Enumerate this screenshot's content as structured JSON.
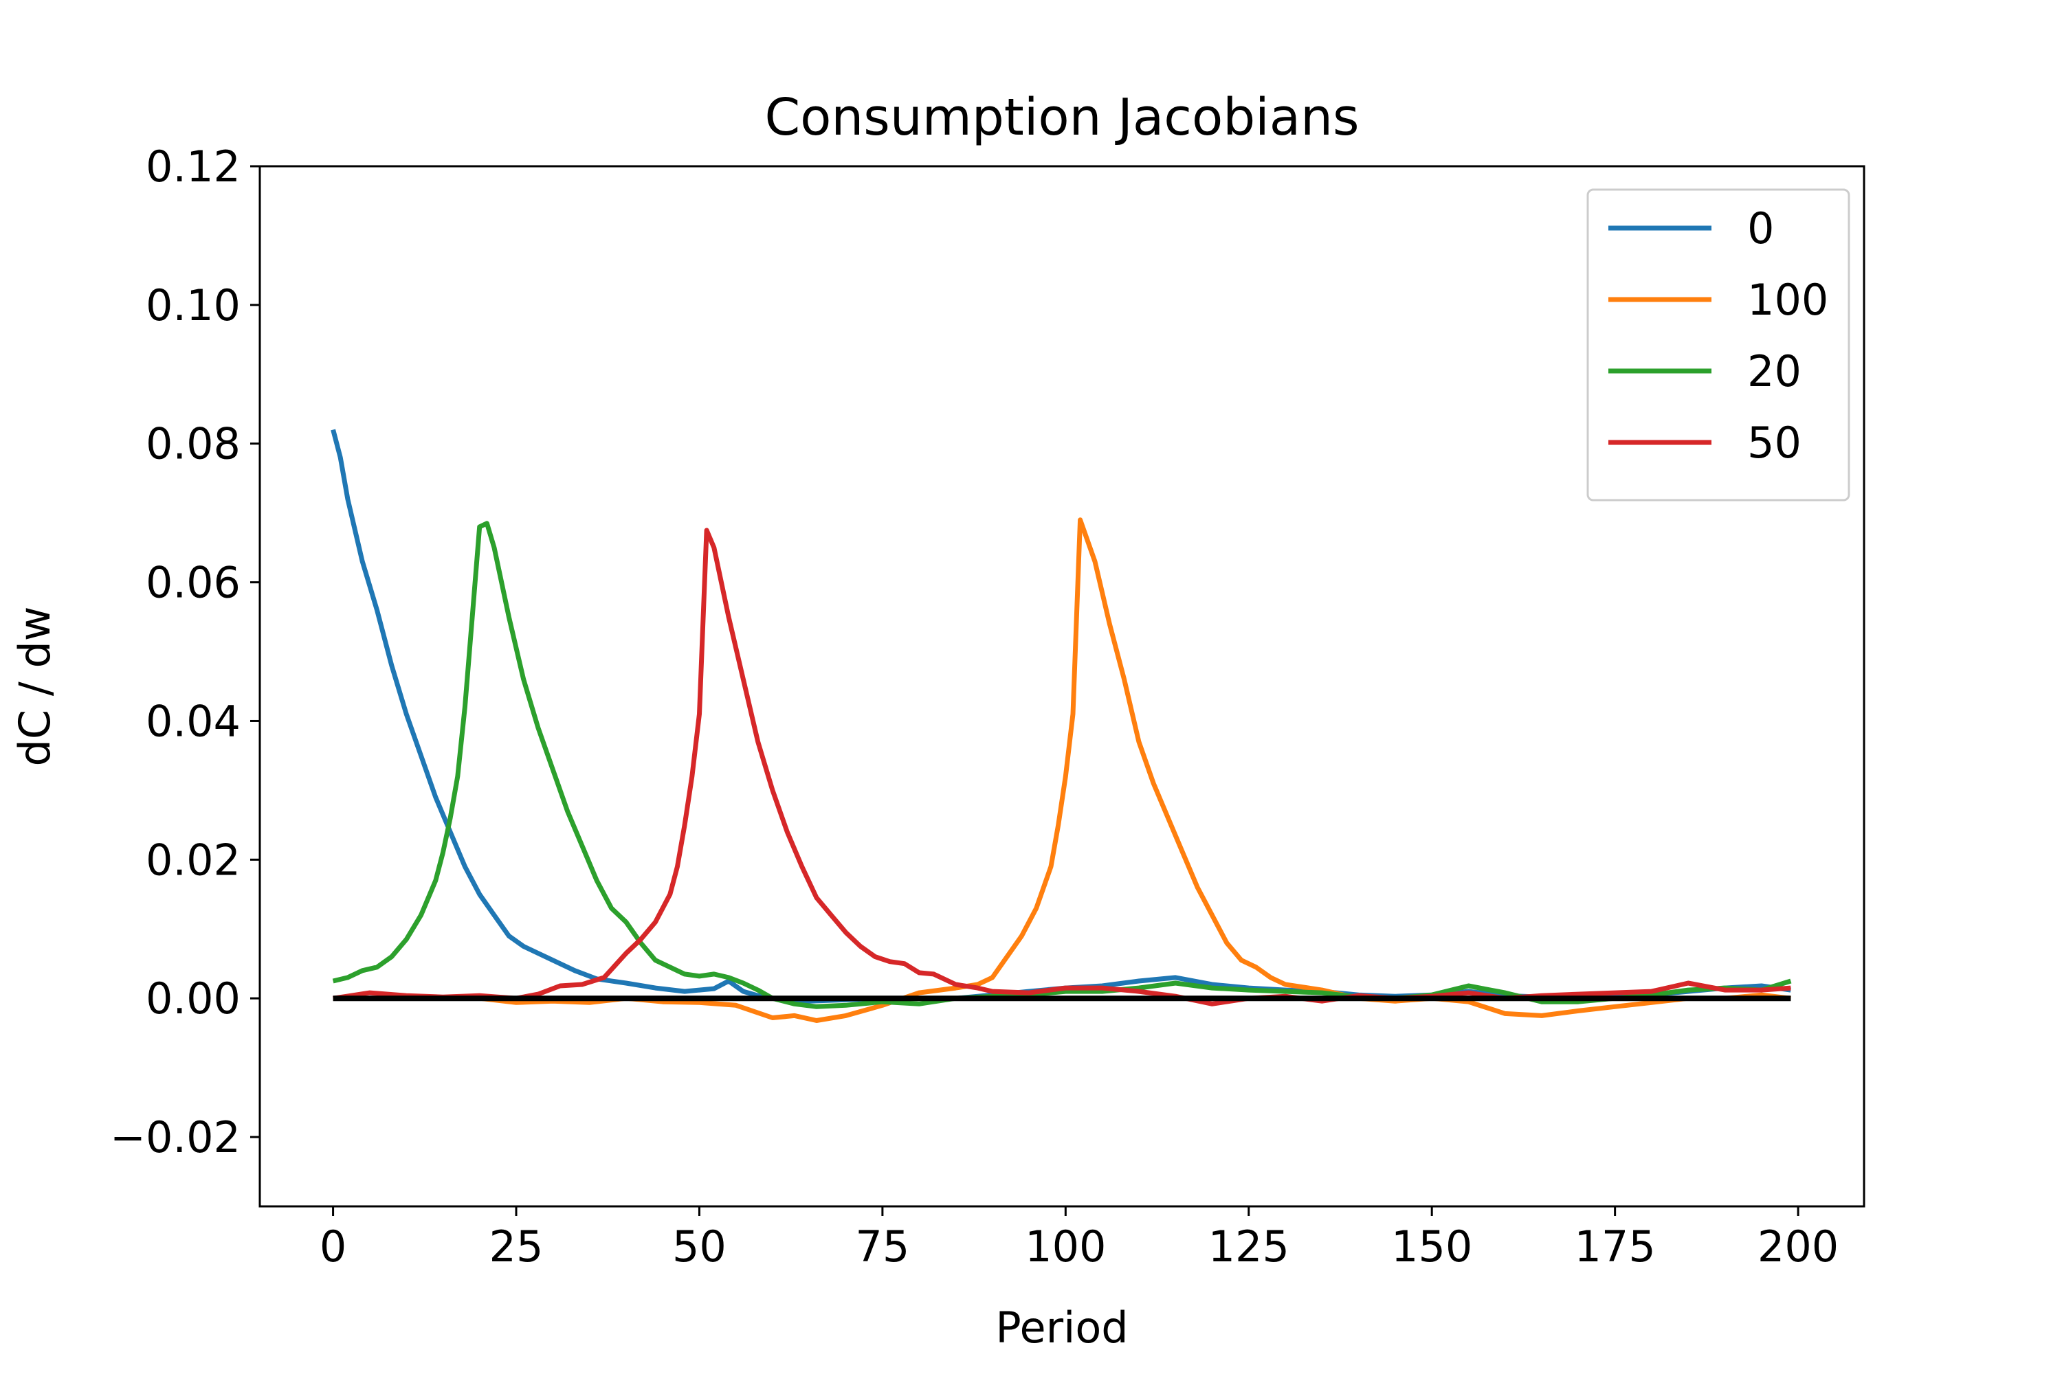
{
  "chart_data": {
    "type": "line",
    "title": "Consumption Jacobians",
    "xlabel": "Period",
    "ylabel": "dC / dw",
    "xlim": [
      -10,
      209
    ],
    "ylim": [
      -0.03,
      0.12
    ],
    "xticks": [
      0,
      25,
      50,
      75,
      100,
      125,
      150,
      175,
      200
    ],
    "yticks": [
      -0.02,
      0.0,
      0.02,
      0.04,
      0.06,
      0.08,
      0.1,
      0.12
    ],
    "xtick_labels": [
      "0",
      "25",
      "50",
      "75",
      "100",
      "125",
      "150",
      "175",
      "200"
    ],
    "ytick_labels": [
      "−0.02",
      "0.00",
      "0.02",
      "0.04",
      "0.06",
      "0.08",
      "0.10",
      "0.12"
    ],
    "grid": false,
    "legend_position": "top-right",
    "series": [
      {
        "name": "0",
        "color": "#1f77b4",
        "x": [
          0,
          1,
          2,
          4,
          6,
          8,
          10,
          12,
          14,
          16,
          18,
          20,
          22,
          24,
          26,
          28,
          30,
          33,
          36,
          40,
          44,
          48,
          50,
          52,
          54,
          56,
          58,
          60,
          65,
          70,
          75,
          80,
          85,
          90,
          95,
          100,
          105,
          110,
          115,
          120,
          125,
          130,
          135,
          140,
          145,
          150,
          155,
          160,
          165,
          170,
          175,
          180,
          185,
          190,
          195,
          199
        ],
        "y": [
          0.082,
          0.078,
          0.072,
          0.063,
          0.056,
          0.048,
          0.041,
          0.035,
          0.029,
          0.024,
          0.019,
          0.015,
          0.012,
          0.009,
          0.0075,
          0.0065,
          0.0055,
          0.004,
          0.0028,
          0.0022,
          0.0015,
          0.001,
          0.0012,
          0.0014,
          0.0025,
          0.001,
          0.0004,
          0.0,
          -0.0004,
          -0.0002,
          0.0,
          0.0,
          0.0,
          0.0005,
          0.001,
          0.0015,
          0.0018,
          0.0025,
          0.003,
          0.002,
          0.0015,
          0.0012,
          0.001,
          0.0005,
          0.0003,
          0.0005,
          0.001,
          0.0004,
          0.0002,
          0.0,
          0.0003,
          0.0005,
          0.001,
          0.0015,
          0.0018,
          0.0012
        ]
      },
      {
        "name": "100",
        "color": "#ff7f0e",
        "x": [
          0,
          10,
          20,
          25,
          30,
          35,
          40,
          45,
          50,
          55,
          60,
          63,
          66,
          70,
          75,
          80,
          85,
          88,
          90,
          92,
          94,
          96,
          98,
          99,
          100,
          101,
          102,
          104,
          106,
          108,
          110,
          112,
          114,
          116,
          118,
          120,
          122,
          124,
          126,
          128,
          130,
          135,
          140,
          145,
          150,
          155,
          160,
          165,
          170,
          175,
          180,
          185,
          190,
          195,
          199
        ],
        "y": [
          0.0,
          0.0,
          0.0,
          -0.0006,
          -0.0004,
          -0.0006,
          0.0,
          -0.0005,
          -0.0006,
          -0.001,
          -0.0028,
          -0.0025,
          -0.0032,
          -0.0025,
          -0.001,
          0.0008,
          0.0015,
          0.002,
          0.003,
          0.006,
          0.009,
          0.013,
          0.019,
          0.025,
          0.032,
          0.041,
          0.069,
          0.063,
          0.054,
          0.046,
          0.037,
          0.031,
          0.026,
          0.021,
          0.016,
          0.012,
          0.008,
          0.0055,
          0.0045,
          0.003,
          0.002,
          0.0012,
          0.0,
          -0.0004,
          0.0,
          -0.0005,
          -0.0022,
          -0.0025,
          -0.0018,
          -0.0012,
          -0.0006,
          0.0,
          0.0,
          0.0005,
          0.0
        ]
      },
      {
        "name": "20",
        "color": "#2ca02c",
        "x": [
          0,
          2,
          4,
          6,
          8,
          10,
          12,
          14,
          15,
          16,
          17,
          18,
          19,
          20,
          21,
          22,
          24,
          26,
          28,
          30,
          32,
          34,
          36,
          38,
          40,
          42,
          44,
          46,
          48,
          50,
          52,
          54,
          56,
          58,
          60,
          63,
          66,
          70,
          75,
          80,
          85,
          90,
          95,
          100,
          105,
          110,
          115,
          120,
          125,
          130,
          135,
          140,
          145,
          150,
          155,
          160,
          165,
          170,
          175,
          180,
          185,
          190,
          195,
          199
        ],
        "y": [
          0.0025,
          0.003,
          0.004,
          0.0045,
          0.006,
          0.0085,
          0.012,
          0.017,
          0.021,
          0.026,
          0.032,
          0.042,
          0.055,
          0.068,
          0.0685,
          0.065,
          0.055,
          0.046,
          0.039,
          0.033,
          0.027,
          0.022,
          0.017,
          0.013,
          0.011,
          0.008,
          0.0055,
          0.0045,
          0.0035,
          0.0032,
          0.0035,
          0.003,
          0.0022,
          0.0012,
          0.0,
          -0.0008,
          -0.0012,
          -0.001,
          -0.0005,
          -0.0008,
          0.0,
          0.0003,
          0.0005,
          0.001,
          0.001,
          0.0015,
          0.0022,
          0.0015,
          0.0012,
          0.001,
          0.0008,
          0.0002,
          0.0,
          0.0005,
          0.0018,
          0.0008,
          -0.0005,
          -0.0005,
          0.0,
          0.0005,
          0.0012,
          0.0015,
          0.0012,
          0.0025
        ]
      },
      {
        "name": "50",
        "color": "#d62728",
        "x": [
          0,
          5,
          10,
          15,
          20,
          25,
          28,
          31,
          34,
          37,
          40,
          42,
          44,
          46,
          47,
          48,
          49,
          50,
          51,
          52,
          54,
          56,
          58,
          60,
          62,
          64,
          66,
          68,
          70,
          72,
          74,
          76,
          78,
          80,
          82,
          85,
          88,
          90,
          95,
          100,
          105,
          110,
          115,
          120,
          125,
          130,
          135,
          140,
          145,
          150,
          155,
          160,
          165,
          170,
          175,
          180,
          185,
          190,
          195,
          199
        ],
        "y": [
          0.0,
          0.0008,
          0.0004,
          0.0002,
          0.0004,
          0.0,
          0.0006,
          0.0018,
          0.002,
          0.003,
          0.0065,
          0.0085,
          0.011,
          0.015,
          0.019,
          0.025,
          0.032,
          0.041,
          0.0675,
          0.065,
          0.055,
          0.046,
          0.037,
          0.03,
          0.024,
          0.019,
          0.0145,
          0.012,
          0.0095,
          0.0075,
          0.006,
          0.0053,
          0.005,
          0.0037,
          0.0035,
          0.002,
          0.0015,
          0.001,
          0.0008,
          0.0015,
          0.0015,
          0.001,
          0.0003,
          -0.0008,
          0.0,
          0.0003,
          -0.0004,
          0.0004,
          0.0,
          0.0003,
          0.0008,
          0.0,
          0.0004,
          0.0006,
          0.0008,
          0.001,
          0.0022,
          0.0012,
          0.0012,
          0.0015
        ]
      },
      {
        "name": "",
        "color": "#000000",
        "x": [
          0,
          199
        ],
        "y": [
          0.0,
          0.0
        ]
      }
    ]
  }
}
